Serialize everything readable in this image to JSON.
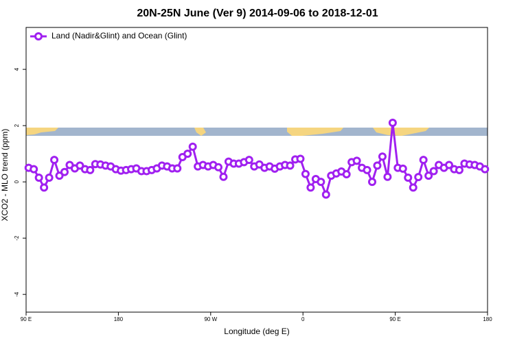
{
  "chart_data": {
    "type": "line",
    "title": "20N-25N June (Ver 9)   2014-09-06 to 2018-12-01",
    "x_label": "Longitude (deg E)",
    "y_label": "XCO2 - MLO trend (ppm)",
    "legend_position": "top-left",
    "xlim": [
      90,
      540
    ],
    "ylim": [
      -4.63,
      5.49
    ],
    "xticks": [
      {
        "value": 90,
        "label": "90 E"
      },
      180,
      {
        "value": 270,
        "label": "90 W"
      },
      {
        "value": 360,
        "label": "0"
      },
      {
        "value": 450,
        "label": "90 E"
      },
      {
        "value": 540,
        "label": "180"
      }
    ],
    "yticks": [
      -4,
      -2,
      0,
      2,
      4
    ],
    "x": [
      92.5,
      97.5,
      102.5,
      107.5,
      112.5,
      117.5,
      122.5,
      127.5,
      132.5,
      137.5,
      142.5,
      147.5,
      152.5,
      157.5,
      162.5,
      167.5,
      172.5,
      177.5,
      182.5,
      187.5,
      192.5,
      197.5,
      202.5,
      207.5,
      212.5,
      217.5,
      222.5,
      227.5,
      232.5,
      237.5,
      242.5,
      247.5,
      252.5,
      257.5,
      262.5,
      267.5,
      272.5,
      277.5,
      282.5,
      287.5,
      292.5,
      297.5,
      302.5,
      307.5,
      312.5,
      317.5,
      322.5,
      327.5,
      332.5,
      337.5,
      342.5,
      347.5,
      352.5,
      357.5,
      362.5,
      367.5,
      372.5,
      377.5,
      382.5,
      387.5,
      392.5,
      397.5,
      402.5,
      407.5,
      412.5,
      417.5,
      422.5,
      427.5,
      432.5,
      437.5,
      442.5,
      447.5,
      452.5,
      457.5,
      462.5,
      467.5,
      472.5,
      477.5,
      482.5,
      487.5,
      492.5,
      497.5,
      502.5,
      507.5,
      512.5,
      517.5,
      522.5,
      527.5,
      532.5,
      537.5
    ],
    "series": [
      {
        "name": "Land (Nadir&Glint) and Ocean (Glint)",
        "color": "#a020f0",
        "values": [
          0.5,
          0.45,
          0.15,
          -0.2,
          0.15,
          0.78,
          0.22,
          0.35,
          0.6,
          0.48,
          0.58,
          0.45,
          0.42,
          0.63,
          0.62,
          0.58,
          0.55,
          0.45,
          0.4,
          0.42,
          0.45,
          0.48,
          0.38,
          0.38,
          0.42,
          0.48,
          0.58,
          0.55,
          0.48,
          0.48,
          0.88,
          1.0,
          1.25,
          0.55,
          0.6,
          0.55,
          0.6,
          0.52,
          0.18,
          0.72,
          0.65,
          0.65,
          0.7,
          0.78,
          0.55,
          0.62,
          0.5,
          0.55,
          0.47,
          0.55,
          0.6,
          0.58,
          0.8,
          0.82,
          0.28,
          -0.2,
          0.1,
          0.0,
          -0.45,
          0.22,
          0.3,
          0.37,
          0.27,
          0.7,
          0.75,
          0.5,
          0.42,
          0.0,
          0.58,
          0.9,
          0.18,
          2.1,
          0.5,
          0.47,
          0.15,
          -0.2,
          0.17,
          0.78,
          0.22,
          0.38,
          0.6,
          0.5,
          0.6,
          0.45,
          0.42,
          0.65,
          0.62,
          0.6,
          0.55,
          0.45
        ]
      }
    ]
  }
}
